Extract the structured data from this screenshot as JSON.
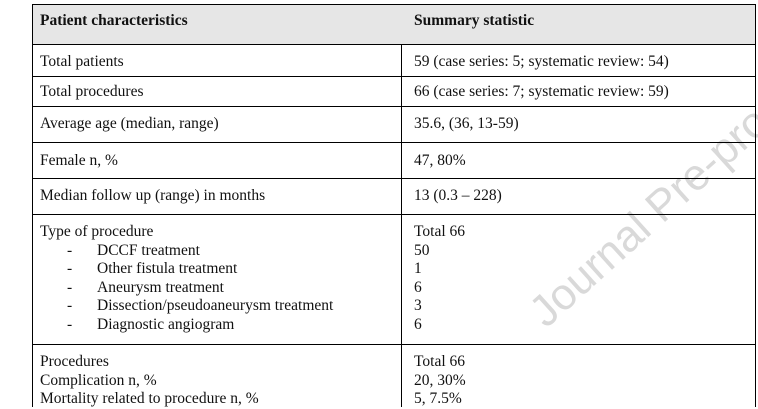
{
  "header": {
    "col1": "Patient characteristics",
    "col2": "Summary statistic"
  },
  "rows": [
    {
      "label": "Total patients",
      "value": "59 (case series: 5; systematic review: 54)"
    },
    {
      "label": "Total procedures",
      "value": "66 (case series: 7; systematic review: 59)"
    },
    {
      "label": "Average age (median, range)",
      "value": "35.6, (36, 13-59)"
    },
    {
      "label": "Female n, %",
      "value": "47, 80%"
    },
    {
      "label": "Median follow up (range) in months",
      "value": "13 (0.3 – 228)"
    }
  ],
  "procedure_type": {
    "label": "Type of procedure",
    "total": "Total 66",
    "bullet": "-",
    "items": [
      {
        "label": "DCCF treatment",
        "value": "50"
      },
      {
        "label": "Other fistula treatment",
        "value": "1"
      },
      {
        "label": "Aneurysm treatment",
        "value": "6"
      },
      {
        "label": "Dissection/pseudoaneurysm treatment",
        "value": "3"
      },
      {
        "label": "Diagnostic angiogram",
        "value": "6"
      }
    ]
  },
  "procedures": {
    "lines": [
      {
        "label": "Procedures",
        "value": "Total 66"
      },
      {
        "label": "Complication n, %",
        "value": "20, 30%"
      },
      {
        "label": "Mortality related to procedure n, %",
        "value": "5, 7.5%"
      }
    ]
  },
  "watermark": "Journal Pre-proof"
}
